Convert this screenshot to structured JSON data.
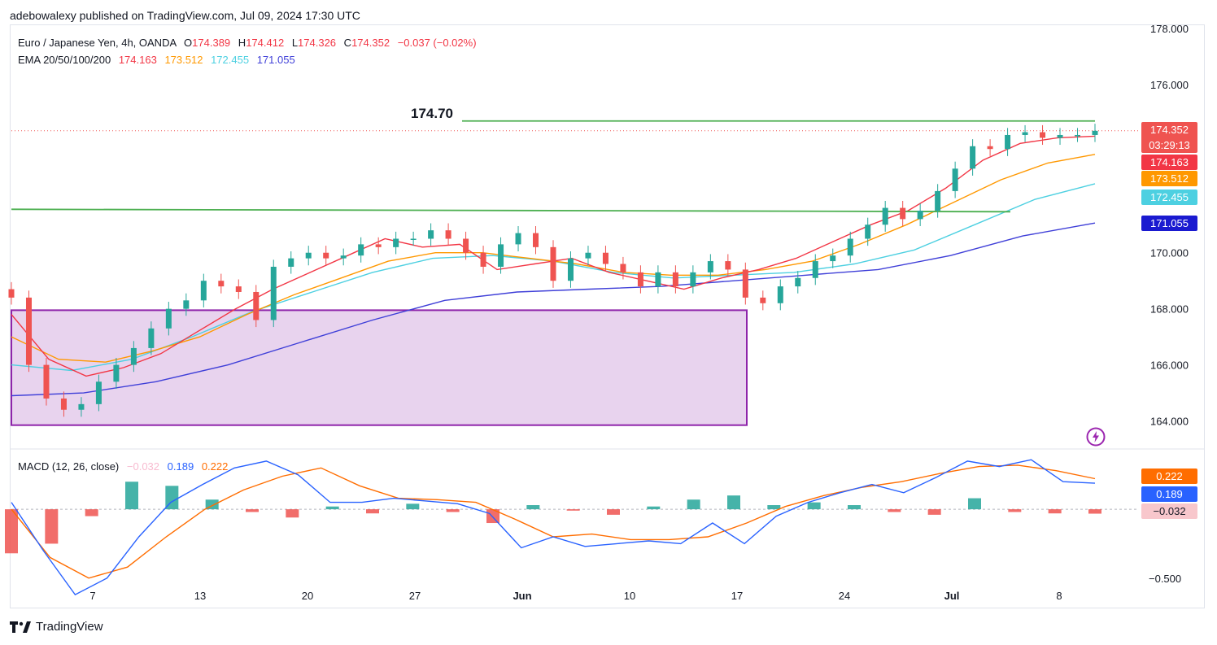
{
  "publisher": "adebowalexy published on TradingView.com, Jul 09, 2024 17:30 UTC",
  "legend": {
    "symbol": "Euro / Japanese Yen, 4h, OANDA",
    "o_label": "O",
    "o": "174.389",
    "h_label": "H",
    "h": "174.412",
    "l_label": "L",
    "l": "174.326",
    "c_label": "C",
    "c": "174.352",
    "change": "−0.037 (−0.02%)",
    "ema_label": "EMA 20/50/100/200",
    "ema20": "174.163",
    "ema50": "173.512",
    "ema100": "172.455",
    "ema200": "171.055",
    "macd_label": "MACD (12, 26, close)",
    "macd_hist": "−0.032",
    "macd_line": "0.189",
    "macd_signal": "0.222"
  },
  "annotation": "174.70",
  "tags": {
    "price": "174.352",
    "countdown": "03:29:13",
    "ema20": "174.163",
    "ema50": "173.512",
    "ema100": "172.455",
    "ema200": "171.055",
    "macd_signal": "0.222",
    "macd_line": "0.189",
    "macd_hist": "−0.032"
  },
  "footer": {
    "brand": "TradingView"
  },
  "colors": {
    "up": "#26a69a",
    "down": "#ef5350",
    "ema20": "#f23645",
    "ema50": "#ff9800",
    "ema100": "#4dd0e1",
    "ema200": "#3f3fd8",
    "trend": "#4caf50",
    "zone_fill": "#e8d3ee",
    "zone_border": "#8e24aa",
    "macd": "#2962ff",
    "signal": "#ff6d00"
  },
  "chart_data": {
    "type": "candlestick",
    "symbol": "EURJPY",
    "timeframe": "4h",
    "x_ticks": [
      "7",
      "13",
      "20",
      "27",
      "Jun",
      "10",
      "17",
      "24",
      "Jul",
      "8"
    ],
    "y_ticks": [
      "164.000",
      "166.000",
      "168.000",
      "170.000",
      "172.000",
      "174.000",
      "176.000",
      "178.000"
    ],
    "ylim": [
      163.0,
      178.0
    ],
    "macd_ticks": [
      "-0.500"
    ],
    "macd_ylim": [
      -0.72,
      0.42
    ],
    "closes": [
      168.4,
      166.0,
      164.8,
      164.4,
      164.6,
      165.4,
      166.0,
      166.6,
      167.3,
      168.0,
      168.3,
      169.0,
      168.8,
      168.6,
      167.6,
      169.5,
      169.8,
      170.0,
      169.8,
      169.9,
      170.3,
      170.2,
      170.5,
      170.5,
      170.8,
      170.5,
      170.0,
      169.5,
      170.3,
      170.7,
      170.2,
      169.0,
      169.8,
      170.0,
      169.6,
      169.3,
      168.8,
      169.3,
      168.8,
      169.3,
      169.7,
      169.4,
      168.4,
      168.2,
      168.8,
      169.1,
      169.7,
      169.9,
      170.5,
      171.0,
      171.6,
      171.2,
      171.5,
      172.2,
      173.0,
      173.8,
      173.7,
      174.2,
      174.3,
      174.1,
      174.2,
      174.2,
      174.35
    ],
    "ema20": [
      167.8,
      166.2,
      165.6,
      165.9,
      166.4,
      167.2,
      168.0,
      168.7,
      169.3,
      169.9,
      170.5,
      170.2,
      170.3,
      169.4,
      169.6,
      169.8,
      169.3,
      169.0,
      168.7,
      169.1,
      169.4,
      169.8,
      170.4,
      171.0,
      171.5,
      172.3,
      173.3,
      173.9,
      174.1,
      174.16
    ],
    "ema50": [
      167.0,
      166.2,
      166.1,
      166.5,
      167.0,
      167.8,
      168.5,
      169.1,
      169.7,
      170.0,
      170.0,
      169.8,
      169.6,
      169.3,
      169.2,
      169.2,
      169.4,
      169.7,
      170.3,
      171.0,
      171.8,
      172.6,
      173.2,
      173.51
    ],
    "ema100": [
      166.0,
      165.8,
      166.2,
      167.0,
      167.9,
      168.6,
      169.3,
      169.8,
      169.9,
      169.7,
      169.3,
      169.1,
      169.2,
      169.3,
      169.6,
      170.1,
      171.0,
      171.9,
      172.46
    ],
    "ema200": [
      164.9,
      165.0,
      165.4,
      166.0,
      166.8,
      167.6,
      168.3,
      168.6,
      168.7,
      168.8,
      169.0,
      169.2,
      169.4,
      169.9,
      170.6,
      171.06
    ],
    "levels": [
      {
        "label": "174.70",
        "value": 174.7
      },
      {
        "label": "",
        "value": 171.6
      }
    ],
    "zone": {
      "low": 163.85,
      "high": 167.95
    },
    "macd": [
      0.05,
      -0.3,
      -0.62,
      -0.5,
      -0.2,
      0.05,
      0.18,
      0.3,
      0.35,
      0.25,
      0.05,
      0.05,
      0.08,
      0.06,
      0.04,
      -0.03,
      -0.28,
      -0.2,
      -0.27,
      -0.25,
      -0.23,
      -0.25,
      -0.1,
      -0.25,
      -0.05,
      0.05,
      0.12,
      0.18,
      0.12,
      0.23,
      0.35,
      0.31,
      0.36,
      0.2,
      0.189
    ],
    "signal": [
      0.0,
      -0.35,
      -0.5,
      -0.42,
      -0.2,
      0.0,
      0.14,
      0.24,
      0.3,
      0.17,
      0.08,
      0.07,
      0.05,
      -0.07,
      -0.2,
      -0.18,
      -0.22,
      -0.22,
      -0.2,
      -0.1,
      0.02,
      0.1,
      0.16,
      0.2,
      0.26,
      0.31,
      0.32,
      0.28,
      0.222
    ],
    "histogram": [
      -0.32,
      -0.25,
      -0.05,
      0.2,
      0.17,
      0.07,
      -0.02,
      -0.06,
      0.02,
      -0.03,
      0.04,
      -0.02,
      -0.1,
      0.03,
      -0.01,
      -0.04,
      0.02,
      0.07,
      0.1,
      0.03,
      0.05,
      0.03,
      -0.02,
      -0.04,
      0.08,
      -0.02,
      -0.03,
      -0.032
    ]
  }
}
